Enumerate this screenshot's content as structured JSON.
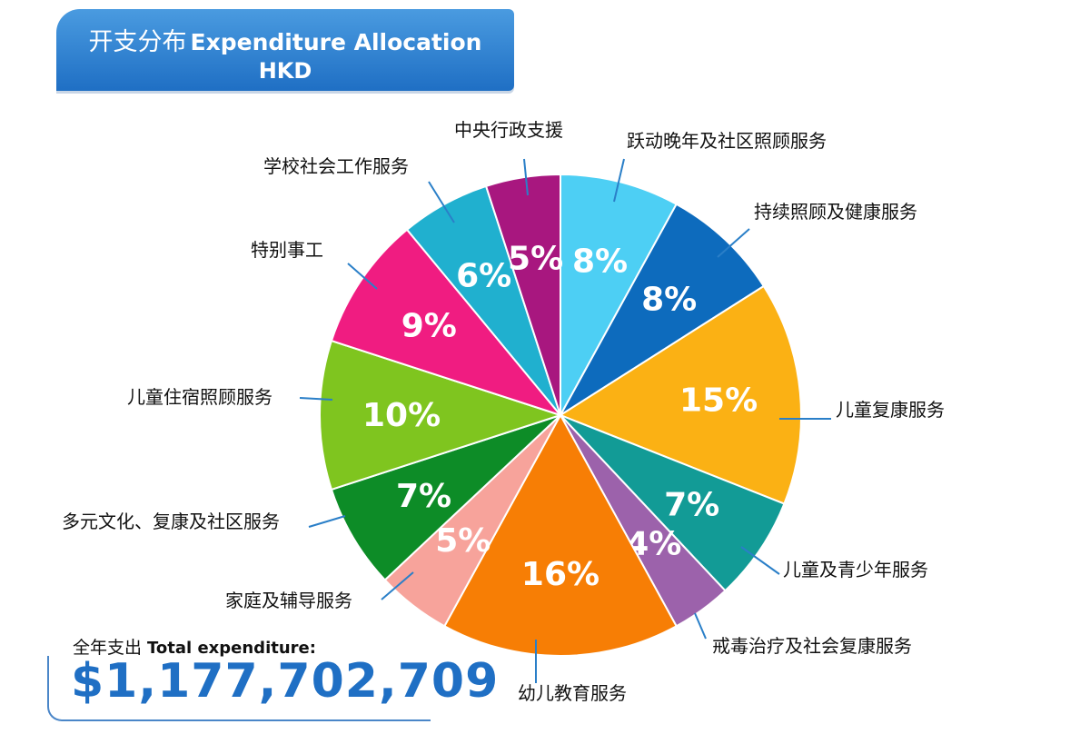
{
  "header": {
    "title_cn": "开支分布",
    "title_en": "Expenditure Allocation",
    "currency": "HKD"
  },
  "total": {
    "label_cn": "全年支出",
    "label_en": "Total expenditure:",
    "value": "$1,177,702,709"
  },
  "chart_data": {
    "type": "pie",
    "title": "开支分布 Expenditure Allocation HKD",
    "unit": "%",
    "slices": [
      {
        "label": "跃动晚年及社区照顾服务",
        "value": 8,
        "display": "8%",
        "color": "#4dcff4"
      },
      {
        "label": "持续照顾及健康服务",
        "value": 8,
        "display": "8%",
        "color": "#0d6bbd"
      },
      {
        "label": "儿童复康服务",
        "value": 15,
        "display": "15%",
        "color": "#fbb114"
      },
      {
        "label": "儿童及青少年服务",
        "value": 7,
        "display": "7%",
        "color": "#129b96"
      },
      {
        "label": "戒毒治疗及社会复康服务",
        "value": 4,
        "display": "4%",
        "color": "#9c62ab"
      },
      {
        "label": "幼儿教育服务",
        "value": 16,
        "display": "16%",
        "color": "#f77e05"
      },
      {
        "label": "家庭及辅导服务",
        "value": 5,
        "display": "5%",
        "color": "#f7a39b"
      },
      {
        "label": "多元文化、复康及社区服务",
        "value": 7,
        "display": "7%",
        "color": "#0d8c27"
      },
      {
        "label": "儿童住宿照顾服务",
        "value": 10,
        "display": "10%",
        "color": "#7fc51f"
      },
      {
        "label": "特别事工",
        "value": 9,
        "display": "9%",
        "color": "#f01c81"
      },
      {
        "label": "学校社会工作服务",
        "value": 6,
        "display": "6%",
        "color": "#20b0cf"
      },
      {
        "label": "中央行政支援",
        "value": 5,
        "display": "5%",
        "color": "#a8177f"
      }
    ]
  }
}
